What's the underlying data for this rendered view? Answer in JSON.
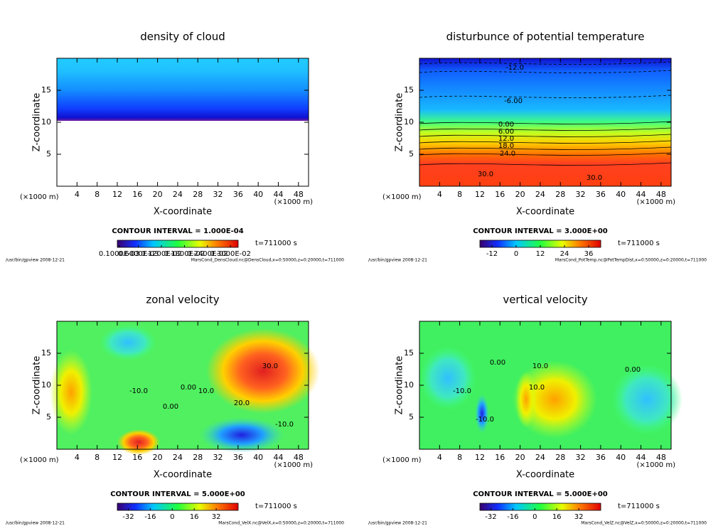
{
  "chart_data": [
    {
      "type": "contour",
      "title": "density of cloud",
      "xlabel": "X-coordinate",
      "ylabel": "Z-coordinate",
      "unit_label": "(×1000 m)",
      "xlim": [
        0,
        50
      ],
      "xticks": [
        4,
        8,
        12,
        16,
        20,
        24,
        28,
        32,
        36,
        40,
        44,
        48
      ],
      "ylim": [
        0,
        20
      ],
      "yticks": [
        5,
        10,
        15
      ],
      "contour_interval": "CONTOUR INTERVAL = 1.000E-04",
      "time_label": "t=711000 s",
      "clim": [
        5e-05,
        0.0032
      ],
      "cticks": [
        {
          "value": 0.0001,
          "label": "0.1000E-03"
        },
        {
          "value": 0.0006,
          "label": "0.6000E-03"
        },
        {
          "value": 0.0012,
          "label": "0.1200E-02"
        },
        {
          "value": 0.0018,
          "label": "0.1800E-02"
        },
        {
          "value": 0.0024,
          "label": "0.2400E-02"
        },
        {
          "value": 0.003,
          "label": "0.3000E-02"
        }
      ],
      "footer_left": "/usr/bin/gpview   2008-12-21",
      "footer_right": "MarsCond_DensCloud.nc@DensCloud,x=0:50000,z=0:20000,t=711000",
      "contour_labels": []
    },
    {
      "type": "contour",
      "title": "disturbunce of potential temperature",
      "xlabel": "X-coordinate",
      "ylabel": "Z-coordinate",
      "unit_label": "(×1000 m)",
      "xlim": [
        0,
        50
      ],
      "xticks": [
        4,
        8,
        12,
        16,
        20,
        24,
        28,
        32,
        36,
        40,
        44,
        48
      ],
      "ylim": [
        0,
        20
      ],
      "yticks": [
        5,
        10,
        15
      ],
      "contour_interval": "CONTOUR INTERVAL = 3.000E+00",
      "time_label": "t=711000 s",
      "clim": [
        -18,
        42
      ],
      "cticks": [
        -12,
        0,
        12,
        24,
        36
      ],
      "footer_left": "/usr/bin/gpview   2008-12-21",
      "footer_right": "MarsCond_PotTemp.nc@PotTempDist,x=0:50000,z=0:20000,t=711000",
      "contour_labels": [
        {
          "value": -12,
          "label": "-12.0"
        },
        {
          "value": -6,
          "label": "-6.00"
        },
        {
          "value": 0,
          "label": "0.00"
        },
        {
          "value": 6,
          "label": "6.00"
        },
        {
          "value": 12,
          "label": "12.0"
        },
        {
          "value": 18,
          "label": "18.0"
        },
        {
          "value": 24,
          "label": "24.0"
        },
        {
          "value": 30,
          "label": "30.0"
        },
        {
          "value": 30,
          "label": "30.0"
        }
      ]
    },
    {
      "type": "contour",
      "title": "zonal velocity",
      "xlabel": "X-coordinate",
      "ylabel": "Z-coordinate",
      "unit_label": "(×1000 m)",
      "xlim": [
        0,
        50
      ],
      "xticks": [
        4,
        8,
        12,
        16,
        20,
        24,
        28,
        32,
        36,
        40,
        44,
        48
      ],
      "ylim": [
        0,
        20
      ],
      "yticks": [
        5,
        10,
        15
      ],
      "contour_interval": "CONTOUR INTERVAL = 5.000E+00",
      "time_label": "t=711000 s",
      "clim": [
        -40,
        48
      ],
      "cticks": [
        -32,
        -16,
        0,
        16,
        32
      ],
      "footer_left": "/usr/bin/gpview   2008-12-21",
      "footer_right": "MarsCond_VelX.nc@VelX,x=0:50000,z=0:20000,t=711000",
      "contour_labels": [
        {
          "value": 30,
          "label": "30.0"
        },
        {
          "value": -10,
          "label": "-10.0"
        },
        {
          "value": 0,
          "label": "0.00"
        },
        {
          "value": 0,
          "label": "0.00"
        },
        {
          "value": 10,
          "label": "10.0"
        },
        {
          "value": 20,
          "label": "20.0"
        },
        {
          "value": -10,
          "label": "-10.0"
        }
      ]
    },
    {
      "type": "contour",
      "title": "vertical velocity",
      "xlabel": "X-coordinate",
      "ylabel": "Z-coordinate",
      "unit_label": "(×1000 m)",
      "xlim": [
        0,
        50
      ],
      "xticks": [
        4,
        8,
        12,
        16,
        20,
        24,
        28,
        32,
        36,
        40,
        44,
        48
      ],
      "ylim": [
        0,
        20
      ],
      "yticks": [
        5,
        10,
        15
      ],
      "contour_interval": "CONTOUR INTERVAL = 5.000E+00",
      "time_label": "t=711000 s",
      "clim": [
        -40,
        48
      ],
      "cticks": [
        -32,
        -16,
        0,
        16,
        32
      ],
      "footer_left": "/usr/bin/gpview   2008-12-21",
      "footer_right": "MarsCond_VelZ.nc@VelZ,x=0:50000,z=0:20000,t=711000",
      "contour_labels": [
        {
          "value": 0,
          "label": "0.00"
        },
        {
          "value": 10,
          "label": "10.0"
        },
        {
          "value": 0,
          "label": "0.00"
        },
        {
          "value": -10,
          "label": "-10.0"
        },
        {
          "value": 10,
          "label": "10.0"
        },
        {
          "value": -10,
          "label": "-10.0"
        }
      ]
    }
  ]
}
